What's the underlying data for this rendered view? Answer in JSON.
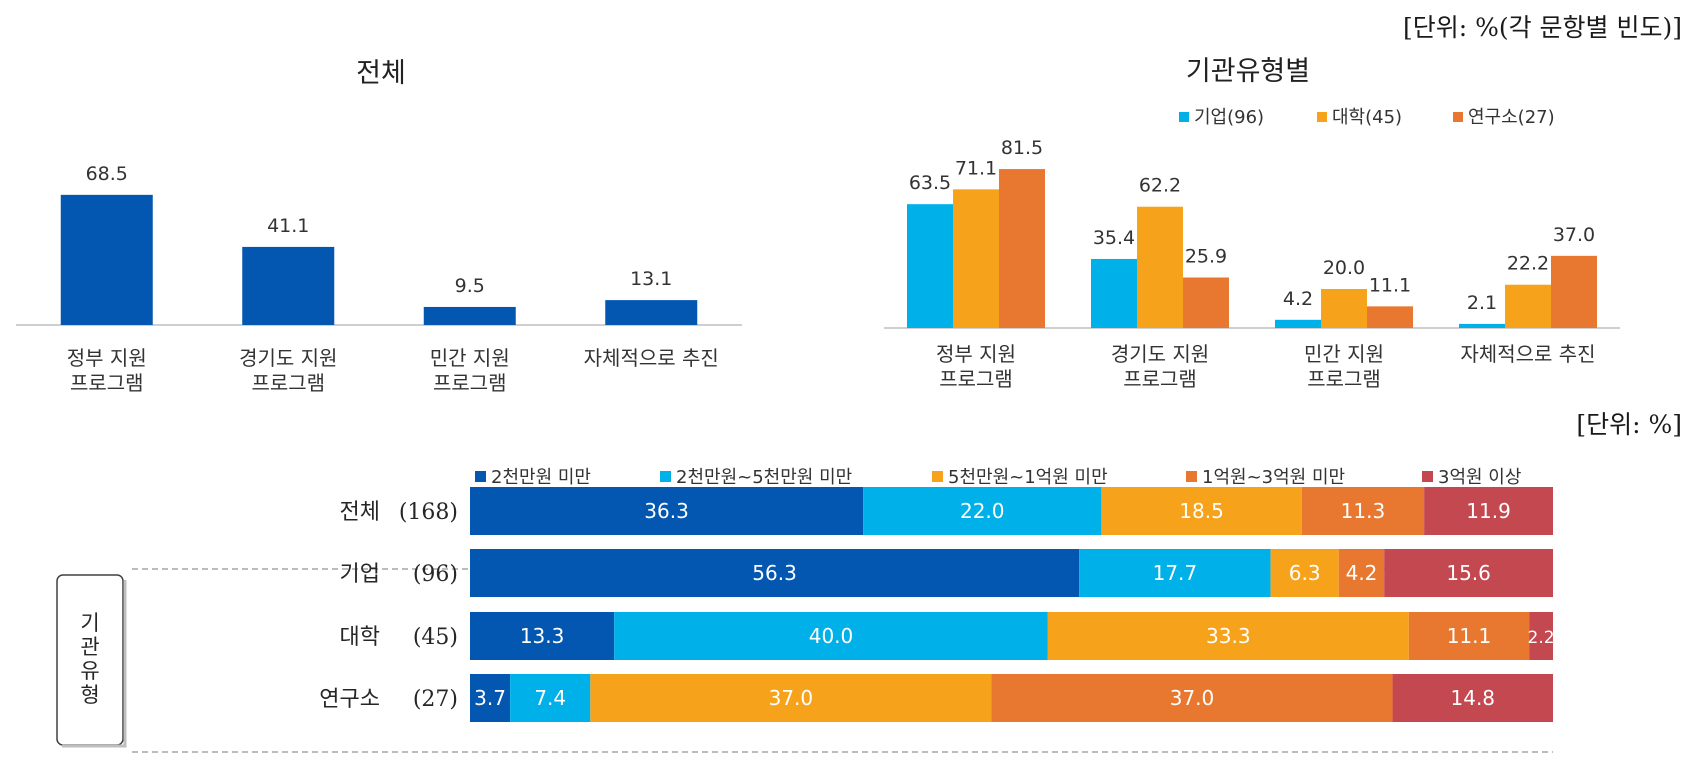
{
  "top_unit": "[단위: %(각 문항별 빈도)]",
  "bottom_unit": "[단위: %]",
  "chart_data": [
    {
      "type": "bar",
      "title": "전체",
      "categories": [
        [
          "정부 지원",
          "프로그램"
        ],
        [
          "경기도 지원",
          "프로그램"
        ],
        [
          "민간 지원",
          "프로그램"
        ],
        [
          "자체적으로 추진"
        ]
      ],
      "values": [
        68.5,
        41.1,
        9.5,
        13.1
      ],
      "value_labels": [
        "68.5",
        "41.1",
        "9.5",
        "13.1"
      ],
      "ylim": [
        0,
        100
      ],
      "color": "#0357B1",
      "grid": false
    },
    {
      "type": "bar",
      "title": "기관유형별",
      "categories": [
        [
          "정부 지원",
          "프로그램"
        ],
        [
          "경기도 지원",
          "프로그램"
        ],
        [
          "민간 지원",
          "프로그램"
        ],
        [
          "자체적으로 추진"
        ]
      ],
      "legend_position": "top-right",
      "ylim": [
        0,
        100
      ],
      "grid": false,
      "series": [
        {
          "name": "기업(96)",
          "color": "#00B0E8",
          "values": [
            63.5,
            35.4,
            4.2,
            2.1
          ],
          "labels": [
            "63.5",
            "35.4",
            "4.2",
            "2.1"
          ]
        },
        {
          "name": "대학(45)",
          "color": "#F7A21B",
          "values": [
            71.1,
            62.2,
            20.0,
            22.2
          ],
          "labels": [
            "71.1",
            "62.2",
            "20.0",
            "22.2"
          ]
        },
        {
          "name": "연구소(27)",
          "color": "#E8782F",
          "values": [
            81.5,
            25.9,
            11.1,
            37.0
          ],
          "labels": [
            "81.5",
            "25.9",
            "11.1",
            "37.0"
          ]
        }
      ]
    },
    {
      "type": "bar",
      "orientation": "horizontal",
      "stacked": true,
      "xlim": [
        0,
        100
      ],
      "group_label": "기관유형",
      "legend_position": "top",
      "rows": [
        {
          "name": "전체",
          "n": "(168)"
        },
        {
          "name": "기업",
          "n": "(96)"
        },
        {
          "name": "대학",
          "n": "(45)"
        },
        {
          "name": "연구소",
          "n": "(27)"
        }
      ],
      "series": [
        {
          "name": "2천만원 미만",
          "color": "#0357B1",
          "values": [
            36.3,
            56.3,
            13.3,
            3.7
          ],
          "labels": [
            "36.3",
            "56.3",
            "13.3",
            "3.7"
          ]
        },
        {
          "name": "2천만원~5천만원 미만",
          "color": "#00B0E8",
          "values": [
            22.0,
            17.7,
            40.0,
            7.4
          ],
          "labels": [
            "22.0",
            "17.7",
            "40.0",
            "7.4"
          ]
        },
        {
          "name": "5천만원~1억원 미만",
          "color": "#F7A21B",
          "values": [
            18.5,
            6.3,
            33.3,
            37.0
          ],
          "labels": [
            "18.5",
            "6.3",
            "33.3",
            "37.0"
          ]
        },
        {
          "name": "1억원~3억원 미만",
          "color": "#E8782F",
          "values": [
            11.3,
            4.2,
            11.1,
            37.0
          ],
          "labels": [
            "11.3",
            "4.2",
            "11.1",
            "37.0"
          ]
        },
        {
          "name": "3억원 이상",
          "color": "#C4484F",
          "values": [
            11.9,
            15.6,
            2.2,
            14.8
          ],
          "labels": [
            "11.9",
            "15.6",
            "2.2",
            "14.8"
          ]
        }
      ]
    }
  ]
}
